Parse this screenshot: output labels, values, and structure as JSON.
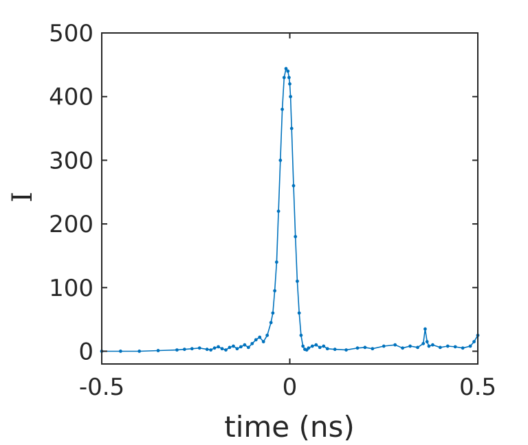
{
  "chart_data": {
    "type": "line",
    "title": "",
    "xlabel": "time (ns)",
    "ylabel": "I",
    "xlim": [
      -0.5,
      0.5
    ],
    "ylim": [
      -20,
      500
    ],
    "xticks": [
      -0.5,
      0,
      0.5
    ],
    "xtick_labels": [
      "-0.5",
      "0",
      "0.5"
    ],
    "yticks": [
      0,
      100,
      200,
      300,
      400,
      500
    ],
    "ytick_labels": [
      "0",
      "100",
      "200",
      "300",
      "400",
      "500"
    ],
    "grid": false,
    "line_color": "#0072BD",
    "series": [
      {
        "marker": "dot",
        "x": [
          -0.5,
          -0.45,
          -0.4,
          -0.35,
          -0.3,
          -0.28,
          -0.26,
          -0.24,
          -0.22,
          -0.21,
          -0.2,
          -0.19,
          -0.18,
          -0.17,
          -0.16,
          -0.15,
          -0.14,
          -0.13,
          -0.12,
          -0.11,
          -0.1,
          -0.09,
          -0.08,
          -0.07,
          -0.06,
          -0.05,
          -0.045,
          -0.04,
          -0.035,
          -0.03,
          -0.025,
          -0.02,
          -0.015,
          -0.01,
          -0.005,
          -0.002,
          0.0,
          0.002,
          0.005,
          0.01,
          0.015,
          0.02,
          0.025,
          0.03,
          0.035,
          0.04,
          0.045,
          0.05,
          0.06,
          0.07,
          0.08,
          0.09,
          0.1,
          0.12,
          0.15,
          0.18,
          0.2,
          0.22,
          0.25,
          0.28,
          0.3,
          0.32,
          0.34,
          0.355,
          0.36,
          0.365,
          0.37,
          0.38,
          0.4,
          0.42,
          0.44,
          0.46,
          0.48,
          0.49,
          0.5
        ],
        "y": [
          0,
          0,
          0,
          1,
          2,
          3,
          4,
          5,
          3,
          2,
          5,
          7,
          4,
          2,
          6,
          8,
          4,
          7,
          10,
          6,
          12,
          18,
          22,
          15,
          25,
          45,
          60,
          95,
          140,
          220,
          300,
          380,
          430,
          444,
          440,
          430,
          420,
          400,
          350,
          260,
          180,
          110,
          60,
          25,
          8,
          3,
          2,
          5,
          8,
          10,
          6,
          8,
          4,
          3,
          2,
          5,
          6,
          4,
          8,
          10,
          5,
          8,
          6,
          12,
          35,
          15,
          8,
          10,
          6,
          8,
          7,
          5,
          8,
          15,
          25
        ]
      }
    ]
  }
}
